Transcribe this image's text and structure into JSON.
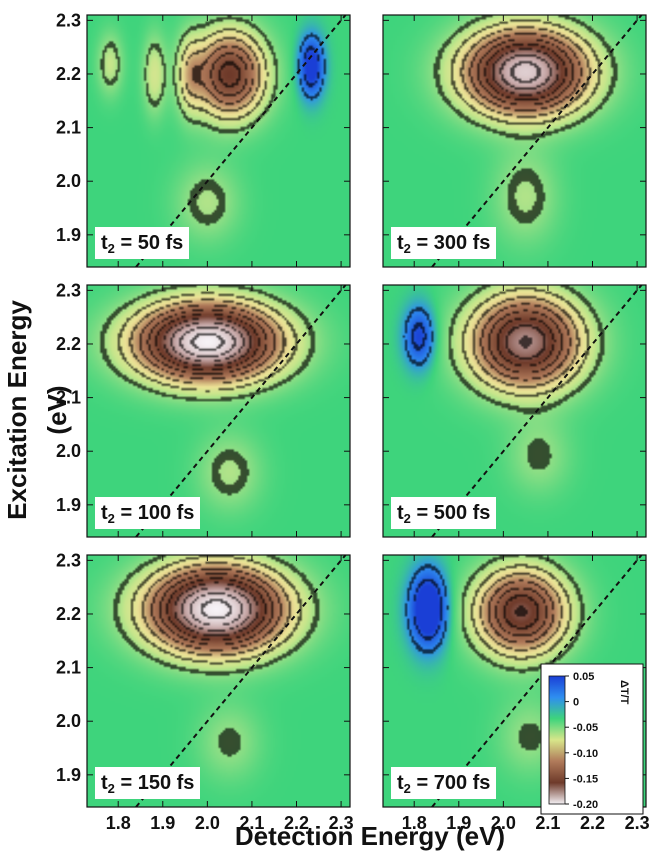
{
  "figure": {
    "ylabel": "Excitation Energy (eV)",
    "xlabel": "Detection Energy (eV)"
  },
  "chart_data": {
    "type": "heatmap",
    "x_ticks": [
      "1.8",
      "1.9",
      "2.0",
      "2.1",
      "2.2",
      "2.3"
    ],
    "y_ticks": [
      "2.3",
      "2.2",
      "2.1",
      "2.0",
      "1.9"
    ],
    "xlim": [
      1.73,
      2.32
    ],
    "ylim": [
      1.84,
      2.31
    ],
    "diagonal": "dashed",
    "colorbar": {
      "title": "ΔT/T",
      "ticks": [
        "0.05",
        "0",
        "-0.05",
        "-0.10",
        "-0.15",
        "-0.20"
      ],
      "range": [
        -0.2,
        0.05
      ],
      "colors": [
        "#1a3fd6",
        "#2f8ef0",
        "#3ed47c",
        "#d8e68a",
        "#b07a5a",
        "#6e3a2a",
        "#f4f0f4"
      ]
    },
    "panels": [
      {
        "id": "p50",
        "label_t": "t",
        "label_sub": "2",
        "label_rest": " = 50 fs",
        "peaks": [
          {
            "x": 2.05,
            "y": 2.2,
            "sx": 0.055,
            "sy": 0.055,
            "amp": -0.13
          },
          {
            "x": 1.96,
            "y": 2.2,
            "sx": 0.02,
            "sy": 0.05,
            "amp": -0.04
          },
          {
            "x": 1.88,
            "y": 2.2,
            "sx": 0.018,
            "sy": 0.05,
            "amp": -0.035
          },
          {
            "x": 1.78,
            "y": 2.22,
            "sx": 0.02,
            "sy": 0.04,
            "amp": -0.03
          },
          {
            "x": 2.235,
            "y": 2.215,
            "sx": 0.02,
            "sy": 0.04,
            "amp": 0.06
          },
          {
            "x": 2.0,
            "y": 1.96,
            "sx": 0.05,
            "sy": 0.05,
            "amp": -0.025
          }
        ]
      },
      {
        "id": "p300",
        "label_t": "t",
        "label_sub": "2",
        "label_rest": " = 300 fs",
        "peaks": [
          {
            "x": 2.05,
            "y": 2.205,
            "sx": 0.095,
            "sy": 0.055,
            "amp": -0.19
          },
          {
            "x": 2.05,
            "y": 1.97,
            "sx": 0.05,
            "sy": 0.06,
            "amp": -0.025
          }
        ]
      },
      {
        "id": "p100",
        "label_t": "t",
        "label_sub": "2",
        "label_rest": " = 100 fs",
        "peaks": [
          {
            "x": 2.0,
            "y": 2.205,
            "sx": 0.11,
            "sy": 0.05,
            "amp": -0.21
          },
          {
            "x": 2.05,
            "y": 1.96,
            "sx": 0.05,
            "sy": 0.05,
            "amp": -0.025
          }
        ]
      },
      {
        "id": "p500",
        "label_t": "t",
        "label_sub": "2",
        "label_rest": " = 500 fs",
        "peaks": [
          {
            "x": 2.05,
            "y": 2.205,
            "sx": 0.085,
            "sy": 0.06,
            "amp": -0.16
          },
          {
            "x": 1.81,
            "y": 2.215,
            "sx": 0.025,
            "sy": 0.04,
            "amp": 0.05
          },
          {
            "x": 2.08,
            "y": 1.99,
            "sx": 0.05,
            "sy": 0.05,
            "amp": -0.02
          }
        ]
      },
      {
        "id": "p150",
        "label_t": "t",
        "label_sub": "2",
        "label_rest": " = 150 fs",
        "peaks": [
          {
            "x": 2.02,
            "y": 2.21,
            "sx": 0.105,
            "sy": 0.055,
            "amp": -0.21
          },
          {
            "x": 2.05,
            "y": 1.96,
            "sx": 0.05,
            "sy": 0.05,
            "amp": -0.02
          }
        ]
      },
      {
        "id": "p700",
        "label_t": "t",
        "label_sub": "2",
        "label_rest": " = 700 fs",
        "peaks": [
          {
            "x": 2.04,
            "y": 2.205,
            "sx": 0.07,
            "sy": 0.055,
            "amp": -0.14
          },
          {
            "x": 1.83,
            "y": 2.21,
            "sx": 0.03,
            "sy": 0.05,
            "amp": 0.075
          },
          {
            "x": 2.06,
            "y": 1.97,
            "sx": 0.05,
            "sy": 0.05,
            "amp": -0.02
          }
        ]
      }
    ]
  }
}
